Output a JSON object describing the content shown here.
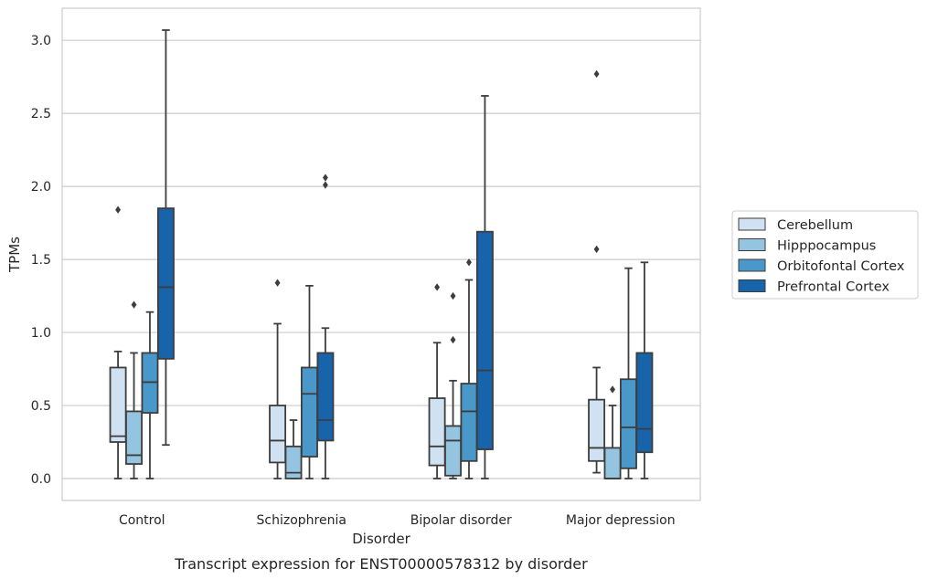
{
  "chart_data": {
    "type": "boxplot",
    "caption": "Transcript expression for ENST00000578312 by disorder",
    "xlabel": "Disorder",
    "ylabel": "TPMs",
    "ylim": [
      -0.15,
      3.22
    ],
    "yticks": [
      0.0,
      0.5,
      1.0,
      1.5,
      2.0,
      2.5,
      3.0
    ],
    "ytick_labels": [
      "0.0",
      "0.5",
      "1.0",
      "1.5",
      "2.0",
      "2.5",
      "3.0"
    ],
    "grid": "horizontal",
    "legend_position": "right",
    "categories": [
      "Control",
      "Schizophrenia",
      "Bipolar disorder",
      "Major depression"
    ],
    "series": [
      {
        "name": "Cerebellum",
        "color": "#d0e1f2",
        "boxes": [
          {
            "whislo": 0.0,
            "q1": 0.25,
            "med": 0.29,
            "q3": 0.76,
            "whishi": 0.87,
            "fliers": [
              1.84
            ]
          },
          {
            "whislo": 0.0,
            "q1": 0.11,
            "med": 0.26,
            "q3": 0.5,
            "whishi": 1.06,
            "fliers": [
              1.34
            ]
          },
          {
            "whislo": 0.0,
            "q1": 0.09,
            "med": 0.22,
            "q3": 0.55,
            "whishi": 0.93,
            "fliers": [
              1.31
            ]
          },
          {
            "whislo": 0.04,
            "q1": 0.12,
            "med": 0.21,
            "q3": 0.54,
            "whishi": 0.76,
            "fliers": [
              1.57,
              2.77
            ]
          }
        ]
      },
      {
        "name": "Hipppocampus",
        "color": "#94c4df",
        "boxes": [
          {
            "whislo": 0.0,
            "q1": 0.1,
            "med": 0.16,
            "q3": 0.46,
            "whishi": 0.86,
            "fliers": [
              1.19
            ]
          },
          {
            "whislo": 0.0,
            "q1": 0.0,
            "med": 0.04,
            "q3": 0.22,
            "whishi": 0.4,
            "fliers": []
          },
          {
            "whislo": 0.0,
            "q1": 0.02,
            "med": 0.26,
            "q3": 0.36,
            "whishi": 0.67,
            "fliers": [
              0.95,
              1.25
            ]
          },
          {
            "whislo": 0.0,
            "q1": 0.0,
            "med": 0.0,
            "q3": 0.21,
            "whishi": 0.5,
            "fliers": [
              0.61
            ]
          }
        ]
      },
      {
        "name": "Orbitofontal Cortex",
        "color": "#4a98c9",
        "boxes": [
          {
            "whislo": 0.0,
            "q1": 0.45,
            "med": 0.66,
            "q3": 0.86,
            "whishi": 1.14,
            "fliers": []
          },
          {
            "whislo": 0.0,
            "q1": 0.15,
            "med": 0.58,
            "q3": 0.76,
            "whishi": 1.32,
            "fliers": []
          },
          {
            "whislo": 0.0,
            "q1": 0.12,
            "med": 0.46,
            "q3": 0.65,
            "whishi": 1.36,
            "fliers": [
              1.48
            ]
          },
          {
            "whislo": 0.0,
            "q1": 0.07,
            "med": 0.35,
            "q3": 0.68,
            "whishi": 1.44,
            "fliers": []
          }
        ]
      },
      {
        "name": "Prefrontal Cortex",
        "color": "#1764ab",
        "boxes": [
          {
            "whislo": 0.23,
            "q1": 0.82,
            "med": 1.31,
            "q3": 1.85,
            "whishi": 3.07,
            "fliers": []
          },
          {
            "whislo": 0.0,
            "q1": 0.26,
            "med": 0.4,
            "q3": 0.86,
            "whishi": 1.03,
            "fliers": [
              2.01,
              2.06
            ]
          },
          {
            "whislo": 0.0,
            "q1": 0.2,
            "med": 0.74,
            "q3": 1.69,
            "whishi": 2.62,
            "fliers": []
          },
          {
            "whislo": 0.0,
            "q1": 0.18,
            "med": 0.34,
            "q3": 0.86,
            "whishi": 1.48,
            "fliers": []
          }
        ]
      }
    ]
  }
}
